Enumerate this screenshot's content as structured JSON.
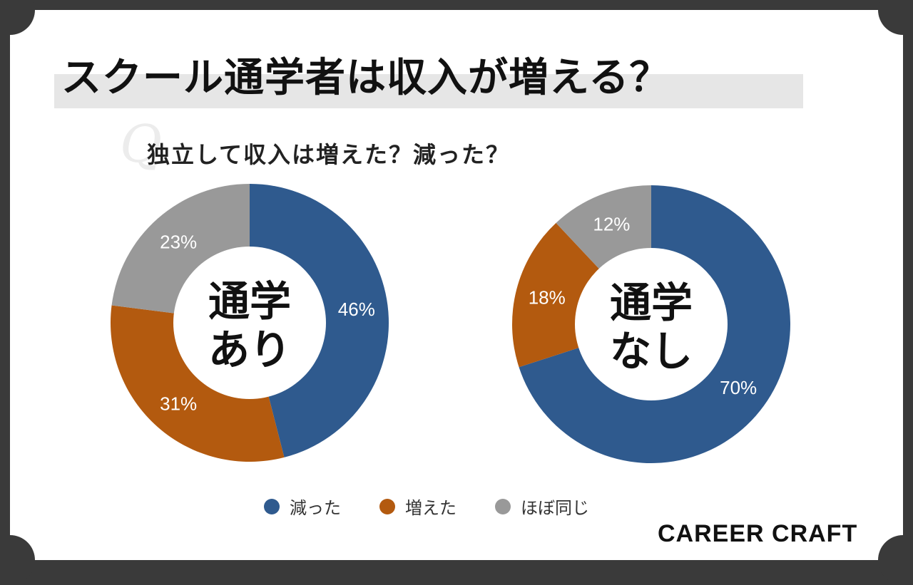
{
  "title": "スクール通学者は収入が増える？",
  "question": "独立して収入は増えた？減った？",
  "brand": "CAREER CRAFT",
  "colors": {
    "decreased": "#2f5a8e",
    "increased": "#b35a0f",
    "same": "#999999"
  },
  "legend": [
    {
      "label": "減った",
      "color": "#2f5a8e"
    },
    {
      "label": "増えた",
      "color": "#b35a0f"
    },
    {
      "label": "ほぼ同じ",
      "color": "#999999"
    }
  ],
  "chart_data": [
    {
      "type": "pie",
      "title": "",
      "center_label": [
        "通学",
        "あり"
      ],
      "categories": [
        "減った",
        "増えた",
        "ほぼ同じ"
      ],
      "values": [
        46,
        31,
        23
      ],
      "value_labels": [
        "46%",
        "31%",
        "23%"
      ]
    },
    {
      "type": "pie",
      "title": "",
      "center_label": [
        "通学",
        "なし"
      ],
      "categories": [
        "減った",
        "増えた",
        "ほぼ同じ"
      ],
      "values": [
        70,
        18,
        12
      ],
      "value_labels": [
        "70%",
        "18%",
        "12%"
      ]
    }
  ]
}
